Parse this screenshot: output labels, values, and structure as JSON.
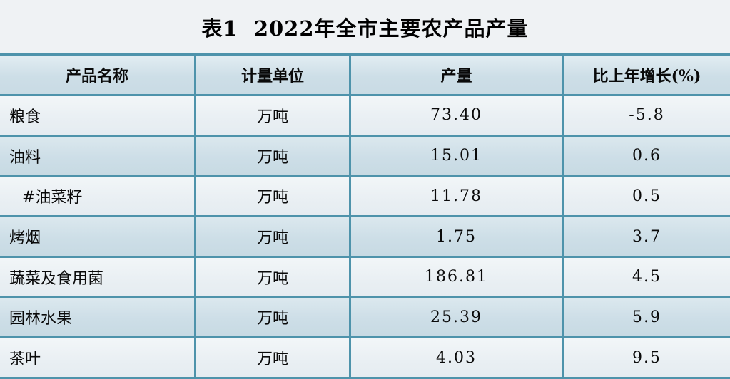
{
  "title": "表1  2022年全市主要农产品产量",
  "table": {
    "columns": [
      "产品名称",
      "计量单位",
      "产量",
      "比上年增长(%)"
    ],
    "rows": [
      {
        "name": "粮食",
        "unit": "万吨",
        "output": "73.40",
        "growth": "-5.8"
      },
      {
        "name": "油料",
        "unit": "万吨",
        "output": "15.01",
        "growth": "0.6"
      },
      {
        "name": "#油菜籽",
        "unit": "万吨",
        "output": "11.78",
        "growth": "0.5"
      },
      {
        "name": "烤烟",
        "unit": "万吨",
        "output": "1.75",
        "growth": "3.7"
      },
      {
        "name": "蔬菜及食用菌",
        "unit": "万吨",
        "output": "186.81",
        "growth": "4.5"
      },
      {
        "name": "园林水果",
        "unit": "万吨",
        "output": "25.39",
        "growth": "5.9"
      },
      {
        "name": "茶叶",
        "unit": "万吨",
        "output": "4.03",
        "growth": "9.5"
      }
    ]
  },
  "chart_data": {
    "type": "table",
    "title": "表1  2022年全市主要农产品产量",
    "columns": [
      "产品名称",
      "计量单位",
      "产量",
      "比上年增长(%)"
    ],
    "rows": [
      [
        "粮食",
        "万吨",
        73.4,
        -5.8
      ],
      [
        "油料",
        "万吨",
        15.01,
        0.6
      ],
      [
        "#油菜籽",
        "万吨",
        11.78,
        0.5
      ],
      [
        "烤烟",
        "万吨",
        1.75,
        3.7
      ],
      [
        "蔬菜及食用菌",
        "万吨",
        186.81,
        4.5
      ],
      [
        "园林水果",
        "万吨",
        25.39,
        5.9
      ],
      [
        "茶叶",
        "万吨",
        4.03,
        9.5
      ]
    ]
  },
  "colors": {
    "page_background": "#eff2f4",
    "border_teal": "#4e93ab",
    "row_light": "#e9eff3",
    "row_dark": "#cddee7",
    "header_background": "#cddee7",
    "text": "#0a0a0a"
  }
}
